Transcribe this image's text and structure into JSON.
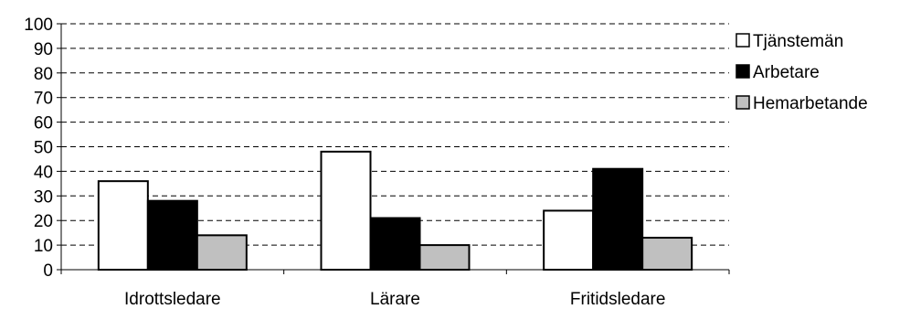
{
  "chart_data": {
    "type": "bar",
    "categories": [
      "Idrottsledare",
      "Lärare",
      "Fritidsledare"
    ],
    "series": [
      {
        "name": "Tjänstemän",
        "values": [
          36,
          48,
          24
        ],
        "color": "#ffffff"
      },
      {
        "name": "Arbetare",
        "values": [
          28,
          21,
          41
        ],
        "color": "#000000"
      },
      {
        "name": "Hemarbetande",
        "values": [
          14,
          10,
          13
        ],
        "color": "#c0c0c0"
      }
    ],
    "yticks": [
      "0",
      "10",
      "20",
      "30",
      "40",
      "50",
      "60",
      "70",
      "80",
      "90",
      "100"
    ],
    "ylim": [
      0,
      100
    ],
    "title": "",
    "xlabel": "",
    "ylabel": "",
    "grid": "dashed horizontal",
    "legend": "right"
  }
}
